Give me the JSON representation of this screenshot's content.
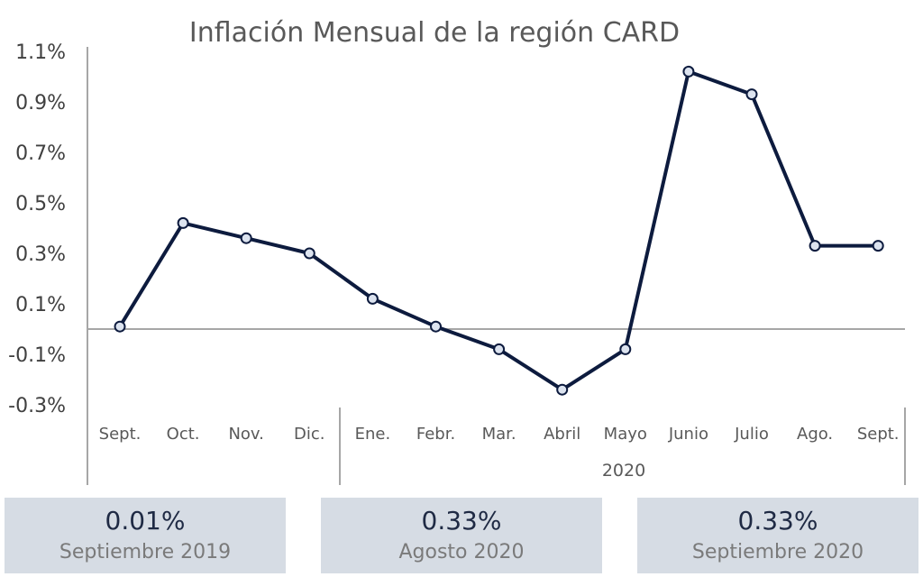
{
  "chart_data": {
    "type": "line",
    "title": "Inflación Mensual de la región CARD",
    "categories": [
      "Sept.",
      "Oct.",
      "Nov.",
      "Dic.",
      "Ene.",
      "Febr.",
      "Mar.",
      "Abril",
      "Mayo",
      "Junio",
      "Julio",
      "Ago.",
      "Sept."
    ],
    "category_group_label": "2020",
    "series": [
      {
        "values": [
          0.01,
          0.42,
          0.36,
          0.3,
          0.12,
          0.01,
          -0.08,
          -0.24,
          -0.08,
          1.02,
          0.93,
          0.33,
          0.33
        ]
      }
    ],
    "y_ticks": [
      "1.1%",
      "0.9%",
      "0.7%",
      "0.5%",
      "0.3%",
      "0.1%",
      "-0.1%",
      "-0.3%"
    ],
    "ylim": [
      -0.3,
      1.1
    ],
    "line_color": "#0d1b3e",
    "marker_fill": "#dce3ef",
    "grid": false
  },
  "cards": [
    {
      "value": "0.01%",
      "label": "Septiembre 2019"
    },
    {
      "value": "0.33%",
      "label": "Agosto 2020"
    },
    {
      "value": "0.33%",
      "label": "Septiembre 2020"
    }
  ]
}
